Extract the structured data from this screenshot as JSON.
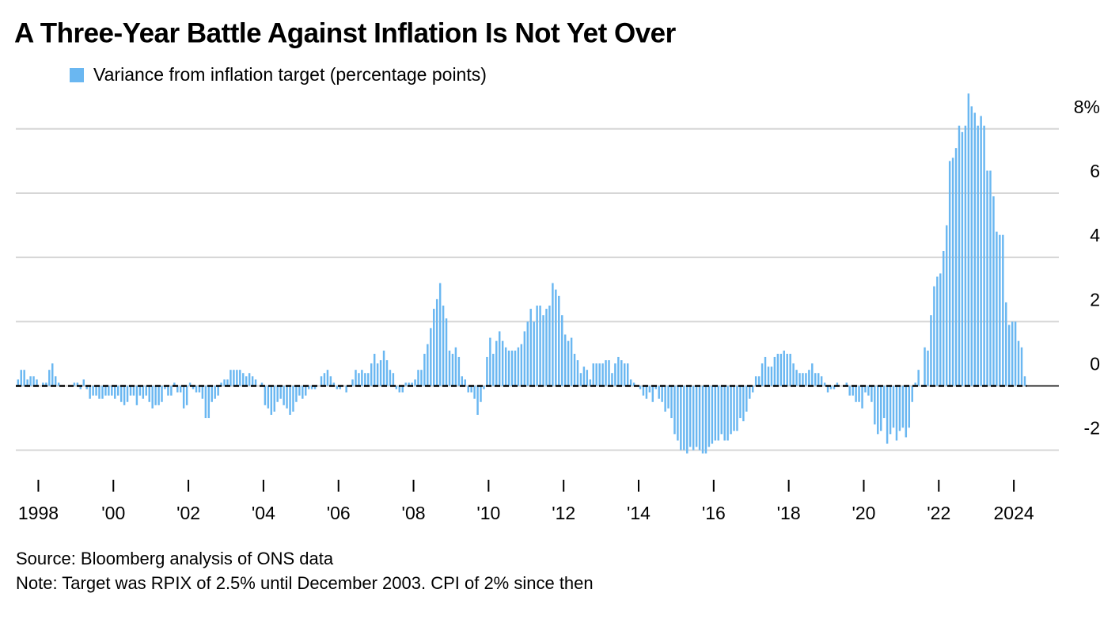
{
  "chart_data": {
    "type": "bar",
    "title": "A Three-Year Battle Against Inflation Is Not Yet Over",
    "source": "Source: Bloomberg analysis of ONS data",
    "note": "Note: Target was RPIX of 2.5% until December 2003. CPI of 2% since then",
    "xlim": [
      1997.4,
      2025.2
    ],
    "xticks": [
      {
        "value": 1998,
        "label": "1998"
      },
      {
        "value": 2000,
        "label": "'00"
      },
      {
        "value": 2002,
        "label": "'02"
      },
      {
        "value": 2004,
        "label": "'04"
      },
      {
        "value": 2006,
        "label": "'06"
      },
      {
        "value": 2008,
        "label": "'08"
      },
      {
        "value": 2010,
        "label": "'10"
      },
      {
        "value": 2012,
        "label": "'12"
      },
      {
        "value": 2014,
        "label": "'14"
      },
      {
        "value": 2016,
        "label": "'16"
      },
      {
        "value": 2018,
        "label": "'18"
      },
      {
        "value": 2020,
        "label": "'20"
      },
      {
        "value": 2022,
        "label": "'22"
      },
      {
        "value": 2024,
        "label": "2024"
      }
    ],
    "ylim": [
      -2.6,
      9.3
    ],
    "yticks": [
      {
        "value": 8,
        "label": "8%"
      },
      6,
      4,
      2,
      0,
      -2
    ],
    "grid": true,
    "x": [
      1997.417,
      1997.5,
      1997.583,
      1997.667,
      1997.75,
      1997.833,
      1997.917,
      1998,
      1998.083,
      1998.167,
      1998.25,
      1998.333,
      1998.417,
      1998.5,
      1998.583,
      1998.667,
      1998.75,
      1998.833,
      1998.917,
      1999,
      1999.083,
      1999.167,
      1999.25,
      1999.333,
      1999.417,
      1999.5,
      1999.583,
      1999.667,
      1999.75,
      1999.833,
      1999.917,
      2000,
      2000.083,
      2000.167,
      2000.25,
      2000.333,
      2000.417,
      2000.5,
      2000.583,
      2000.667,
      2000.75,
      2000.833,
      2000.917,
      2001,
      2001.083,
      2001.167,
      2001.25,
      2001.333,
      2001.417,
      2001.5,
      2001.583,
      2001.667,
      2001.75,
      2001.833,
      2001.917,
      2002,
      2002.083,
      2002.167,
      2002.25,
      2002.333,
      2002.417,
      2002.5,
      2002.583,
      2002.667,
      2002.75,
      2002.833,
      2002.917,
      2003,
      2003.083,
      2003.167,
      2003.25,
      2003.333,
      2003.417,
      2003.5,
      2003.583,
      2003.667,
      2003.75,
      2003.833,
      2003.917,
      2004,
      2004.083,
      2004.167,
      2004.25,
      2004.333,
      2004.417,
      2004.5,
      2004.583,
      2004.667,
      2004.75,
      2004.833,
      2004.917,
      2005,
      2005.083,
      2005.167,
      2005.25,
      2005.333,
      2005.417,
      2005.5,
      2005.583,
      2005.667,
      2005.75,
      2005.833,
      2005.917,
      2006,
      2006.083,
      2006.167,
      2006.25,
      2006.333,
      2006.417,
      2006.5,
      2006.583,
      2006.667,
      2006.75,
      2006.833,
      2006.917,
      2007,
      2007.083,
      2007.167,
      2007.25,
      2007.333,
      2007.417,
      2007.5,
      2007.583,
      2007.667,
      2007.75,
      2007.833,
      2007.917,
      2008,
      2008.083,
      2008.167,
      2008.25,
      2008.333,
      2008.417,
      2008.5,
      2008.583,
      2008.667,
      2008.75,
      2008.833,
      2008.917,
      2009,
      2009.083,
      2009.167,
      2009.25,
      2009.333,
      2009.417,
      2009.5,
      2009.583,
      2009.667,
      2009.75,
      2009.833,
      2009.917,
      2010,
      2010.083,
      2010.167,
      2010.25,
      2010.333,
      2010.417,
      2010.5,
      2010.583,
      2010.667,
      2010.75,
      2010.833,
      2010.917,
      2011,
      2011.083,
      2011.167,
      2011.25,
      2011.333,
      2011.417,
      2011.5,
      2011.583,
      2011.667,
      2011.75,
      2011.833,
      2011.917,
      2012,
      2012.083,
      2012.167,
      2012.25,
      2012.333,
      2012.417,
      2012.5,
      2012.583,
      2012.667,
      2012.75,
      2012.833,
      2012.917,
      2013,
      2013.083,
      2013.167,
      2013.25,
      2013.333,
      2013.417,
      2013.5,
      2013.583,
      2013.667,
      2013.75,
      2013.833,
      2013.917,
      2014,
      2014.083,
      2014.167,
      2014.25,
      2014.333,
      2014.417,
      2014.5,
      2014.583,
      2014.667,
      2014.75,
      2014.833,
      2014.917,
      2015,
      2015.083,
      2015.167,
      2015.25,
      2015.333,
      2015.417,
      2015.5,
      2015.583,
      2015.667,
      2015.75,
      2015.833,
      2015.917,
      2016,
      2016.083,
      2016.167,
      2016.25,
      2016.333,
      2016.417,
      2016.5,
      2016.583,
      2016.667,
      2016.75,
      2016.833,
      2016.917,
      2017,
      2017.083,
      2017.167,
      2017.25,
      2017.333,
      2017.417,
      2017.5,
      2017.583,
      2017.667,
      2017.75,
      2017.833,
      2017.917,
      2018,
      2018.083,
      2018.167,
      2018.25,
      2018.333,
      2018.417,
      2018.5,
      2018.583,
      2018.667,
      2018.75,
      2018.833,
      2018.917,
      2019,
      2019.083,
      2019.167,
      2019.25,
      2019.333,
      2019.417,
      2019.5,
      2019.583,
      2019.667,
      2019.75,
      2019.833,
      2019.917,
      2020,
      2020.083,
      2020.167,
      2020.25,
      2020.333,
      2020.417,
      2020.5,
      2020.583,
      2020.667,
      2020.75,
      2020.833,
      2020.917,
      2021,
      2021.083,
      2021.167,
      2021.25,
      2021.333,
      2021.417,
      2021.5,
      2021.583,
      2021.667,
      2021.75,
      2021.833,
      2021.917,
      2022,
      2022.083,
      2022.167,
      2022.25,
      2022.333,
      2022.417,
      2022.5,
      2022.583,
      2022.667,
      2022.75,
      2022.833,
      2022.917,
      2023,
      2023.083,
      2023.167,
      2023.25,
      2023.333,
      2023.417,
      2023.5,
      2023.583,
      2023.667,
      2023.75,
      2023.833,
      2023.917,
      2024,
      2024.083,
      2024.167,
      2024.25
    ],
    "series": [
      {
        "name": "Variance from inflation target (percentage points)",
        "color": "#6ab7f1",
        "values": [
          0.2,
          0.5,
          0.5,
          0.2,
          0.3,
          0.3,
          0.2,
          0,
          0.1,
          0.1,
          0.5,
          0.7,
          0.3,
          0.1,
          0,
          0,
          0,
          0,
          0.1,
          0.1,
          -0.1,
          0.2,
          -0.1,
          -0.4,
          -0.3,
          -0.3,
          -0.4,
          -0.4,
          -0.3,
          -0.3,
          -0.3,
          -0.4,
          -0.3,
          -0.5,
          -0.6,
          -0.5,
          -0.3,
          -0.3,
          -0.6,
          -0.3,
          -0.4,
          -0.3,
          -0.5,
          -0.7,
          -0.6,
          -0.6,
          -0.5,
          -0.1,
          -0.3,
          -0.3,
          0.1,
          -0.2,
          -0.2,
          -0.7,
          -0.6,
          0.1,
          -0.1,
          -0.2,
          -0.2,
          -0.4,
          -1.0,
          -1.0,
          -0.5,
          -0.4,
          -0.3,
          0.1,
          0.2,
          0.2,
          0.5,
          0.5,
          0.5,
          0.5,
          0.4,
          0.3,
          0.4,
          0.3,
          0.2,
          0,
          0.1,
          -0.6,
          -0.7,
          -0.9,
          -0.8,
          -0.5,
          -0.4,
          -0.6,
          -0.7,
          -0.9,
          -0.8,
          -0.5,
          -0.3,
          -0.4,
          -0.3,
          -0.1,
          -0.1,
          -0.1,
          0,
          0.3,
          0.4,
          0.5,
          0.3,
          0.1,
          -0.1,
          -0.1,
          0,
          -0.2,
          0,
          0.2,
          0.5,
          0.4,
          0.5,
          0.4,
          0.4,
          0.7,
          1.0,
          0.7,
          0.8,
          1.1,
          0.8,
          0.5,
          0.4,
          -0.1,
          -0.2,
          -0.2,
          0.1,
          0.1,
          0.1,
          0.2,
          0.5,
          0.5,
          1.0,
          1.3,
          1.8,
          2.4,
          2.7,
          3.2,
          2.5,
          2.1,
          1.1,
          1.0,
          1.2,
          0.9,
          0.3,
          0.2,
          -0.2,
          -0.2,
          -0.4,
          -0.9,
          -0.5,
          -0.1,
          0.9,
          1.5,
          1.0,
          1.4,
          1.7,
          1.4,
          1.2,
          1.1,
          1.1,
          1.1,
          1.2,
          1.3,
          1.7,
          2.0,
          2.4,
          2.0,
          2.5,
          2.5,
          2.2,
          2.4,
          2.5,
          3.2,
          3.0,
          2.8,
          2.2,
          1.6,
          1.4,
          1.5,
          1.0,
          0.8,
          0.4,
          0.6,
          0.5,
          0.2,
          0.7,
          0.7,
          0.7,
          0.7,
          0.8,
          0.8,
          0.4,
          0.7,
          0.9,
          0.8,
          0.7,
          0.7,
          0.2,
          0.1,
          0,
          -0.1,
          -0.3,
          -0.4,
          -0.2,
          -0.5,
          -0.1,
          -0.4,
          -0.5,
          -0.8,
          -0.7,
          -1.0,
          -1.5,
          -1.7,
          -2.0,
          -2.0,
          -2.1,
          -1.9,
          -2.0,
          -1.9,
          -2.0,
          -2.1,
          -2.1,
          -1.9,
          -1.8,
          -1.7,
          -1.7,
          -1.5,
          -1.7,
          -1.7,
          -1.5,
          -1.4,
          -1.4,
          -1.0,
          -1.1,
          -0.8,
          -0.4,
          -0.2,
          0.3,
          0.3,
          0.7,
          0.9,
          0.6,
          0.6,
          0.9,
          1.0,
          1.0,
          1.1,
          1.0,
          1.0,
          0.7,
          0.5,
          0.4,
          0.4,
          0.4,
          0.5,
          0.7,
          0.4,
          0.4,
          0.3,
          0.1,
          -0.2,
          -0.1,
          -0.1,
          0.1,
          0,
          0,
          0.1,
          -0.3,
          -0.3,
          -0.5,
          -0.5,
          -0.7,
          -0.2,
          -0.3,
          -0.5,
          -1.2,
          -1.5,
          -1.4,
          -1.0,
          -1.8,
          -1.5,
          -1.3,
          -1.7,
          -1.4,
          -1.3,
          -1.6,
          -1.3,
          -0.5,
          0.1,
          0.5,
          0,
          1.2,
          1.1,
          2.2,
          3.1,
          3.4,
          3.5,
          4.2,
          5.0,
          7.0,
          7.1,
          7.4,
          8.1,
          7.9,
          8.1,
          9.1,
          8.7,
          8.5,
          8.1,
          8.4,
          8.1,
          6.7,
          6.7,
          5.9,
          4.8,
          4.7,
          4.7,
          2.6,
          1.9,
          2.0,
          2.0,
          1.4,
          1.2,
          0.3
        ]
      }
    ]
  }
}
